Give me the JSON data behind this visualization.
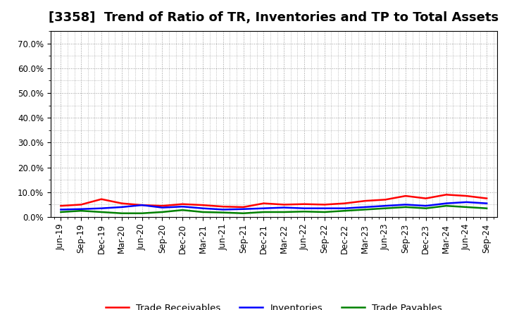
{
  "title": "[3358]  Trend of Ratio of TR, Inventories and TP to Total Assets",
  "x_labels": [
    "Jun-19",
    "Sep-19",
    "Dec-19",
    "Mar-20",
    "Jun-20",
    "Sep-20",
    "Dec-20",
    "Mar-21",
    "Jun-21",
    "Sep-21",
    "Dec-21",
    "Mar-22",
    "Jun-22",
    "Sep-22",
    "Dec-22",
    "Mar-23",
    "Jun-23",
    "Sep-23",
    "Dec-23",
    "Mar-24",
    "Jun-24",
    "Sep-24"
  ],
  "trade_receivables": [
    4.5,
    5.0,
    7.2,
    5.5,
    4.8,
    4.5,
    5.2,
    4.8,
    4.2,
    4.0,
    5.5,
    5.0,
    5.2,
    5.0,
    5.5,
    6.5,
    7.0,
    8.5,
    7.5,
    9.0,
    8.5,
    7.5
  ],
  "inventories": [
    3.0,
    3.2,
    3.5,
    4.0,
    4.8,
    3.8,
    4.2,
    3.5,
    3.0,
    3.2,
    3.5,
    3.8,
    3.5,
    3.5,
    3.5,
    4.0,
    4.5,
    5.0,
    4.5,
    5.5,
    6.0,
    5.5
  ],
  "trade_payables": [
    2.0,
    2.5,
    2.0,
    1.5,
    1.5,
    2.0,
    2.8,
    2.0,
    1.8,
    1.5,
    2.0,
    2.0,
    2.2,
    2.0,
    2.5,
    3.0,
    3.5,
    4.0,
    3.5,
    4.5,
    4.0,
    3.5
  ],
  "tr_color": "#FF0000",
  "inv_color": "#0000FF",
  "tp_color": "#008000",
  "ylim": [
    0,
    75
  ],
  "yticks": [
    0,
    10,
    20,
    30,
    40,
    50,
    60,
    70
  ],
  "ytick_labels": [
    "0.0%",
    "10.0%",
    "20.0%",
    "30.0%",
    "40.0%",
    "50.0%",
    "60.0%",
    "70.0%"
  ],
  "background_color": "#FFFFFF",
  "plot_bg_color": "#FFFFFF",
  "grid_color": "#999999",
  "legend_labels": [
    "Trade Receivables",
    "Inventories",
    "Trade Payables"
  ],
  "line_width": 1.8,
  "title_fontsize": 13,
  "tick_fontsize": 8.5
}
